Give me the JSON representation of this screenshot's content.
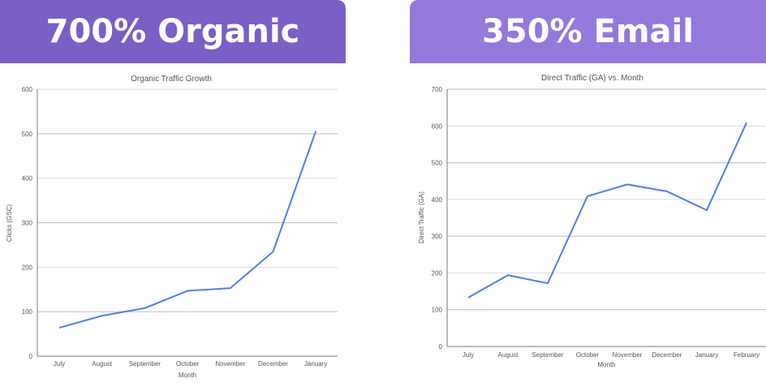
{
  "banners": {
    "left": "700%  Organic",
    "right": "350% Email"
  },
  "chart_data": [
    {
      "type": "line",
      "title": "Organic Traffic Growth",
      "xlabel": "Month",
      "ylabel": "Clicks (GSC)",
      "categories": [
        "July",
        "August",
        "September",
        "October",
        "November",
        "December",
        "January"
      ],
      "values": [
        64,
        91,
        108,
        147,
        153,
        235,
        506
      ],
      "ylim": [
        0,
        600
      ],
      "yticks": [
        0,
        100,
        200,
        300,
        400,
        500,
        600
      ],
      "grid": true,
      "color": "#4f7fdc"
    },
    {
      "type": "line",
      "title": "Direct Traffic (GA) vs. Month",
      "xlabel": "Month",
      "ylabel": "Direct Traffic (GA)",
      "categories": [
        "July",
        "August",
        "September",
        "October",
        "November",
        "December",
        "January",
        "February"
      ],
      "values": [
        133,
        194,
        172,
        409,
        441,
        422,
        371,
        609
      ],
      "ylim": [
        0,
        700
      ],
      "yticks": [
        0,
        100,
        200,
        300,
        400,
        500,
        600,
        700
      ],
      "grid": true,
      "color": "#4f7fdc"
    }
  ]
}
